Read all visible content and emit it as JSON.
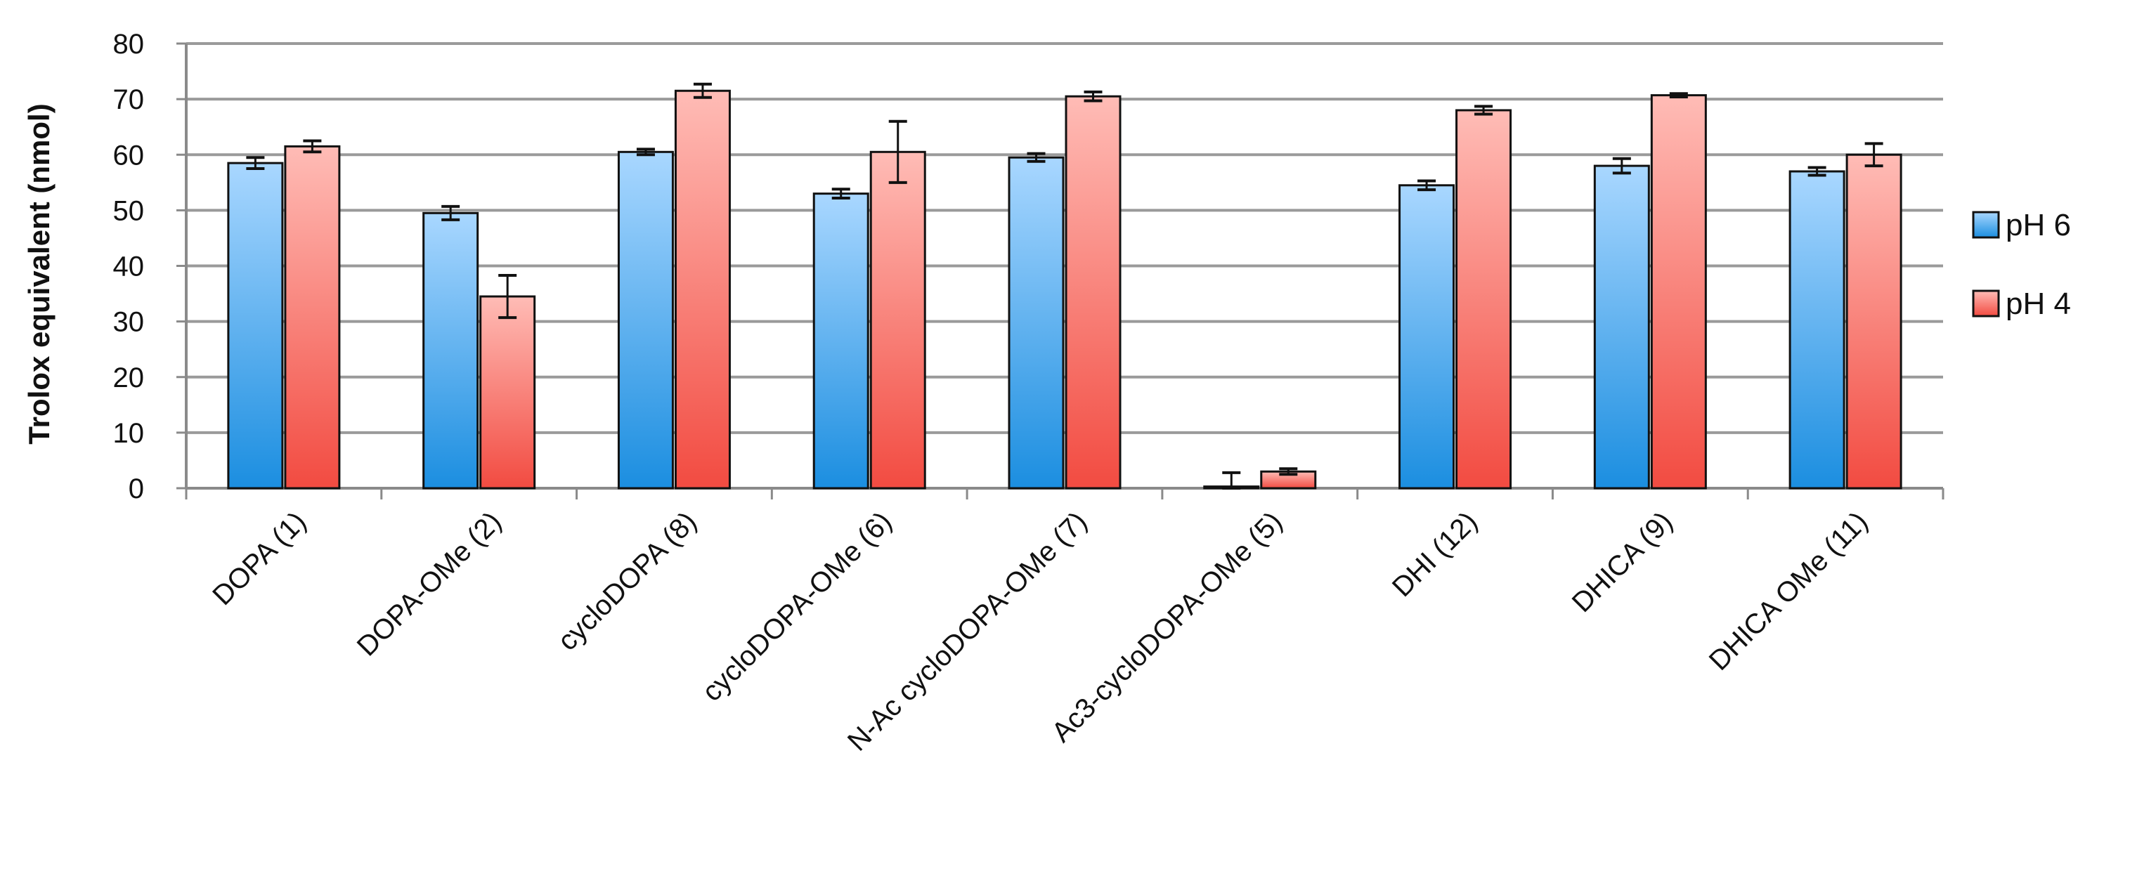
{
  "chart_data": {
    "type": "bar",
    "title": "",
    "xlabel": "",
    "ylabel": "Trolox equivalent (nmol)",
    "ylim": [
      0,
      80
    ],
    "yticks": [
      0,
      10,
      20,
      30,
      40,
      50,
      60,
      70,
      80
    ],
    "grid": true,
    "legend_position": "right",
    "categories": [
      "DOPA (1)",
      "DOPA-OMe (2)",
      "cycloDOPA (8)",
      "cycloDOPA-OMe (6)",
      "N-Ac cycloDOPA-OMe (7)",
      "Ac3-cycloDOPA-OMe (5)",
      "DHI (12)",
      "DHICA (9)",
      "DHICA OMe (11)"
    ],
    "series": [
      {
        "name": "pH 6",
        "values": [
          58.5,
          49.5,
          60.5,
          53,
          59.5,
          0.3,
          54.5,
          58,
          57
        ],
        "errors": [
          1,
          1.2,
          0.5,
          0.8,
          0.7,
          2.5,
          0.8,
          1.3,
          0.7
        ],
        "colors": [
          "#a9d7ff",
          "#1b8ee0"
        ]
      },
      {
        "name": "pH 4",
        "values": [
          61.5,
          34.5,
          71.5,
          60.5,
          70.5,
          3,
          68,
          70.7,
          60
        ],
        "errors": [
          1,
          3.8,
          1.2,
          5.5,
          0.8,
          0.5,
          0.7,
          0.3,
          2
        ],
        "colors": [
          "#ffbcb6",
          "#f24b41"
        ]
      }
    ]
  }
}
